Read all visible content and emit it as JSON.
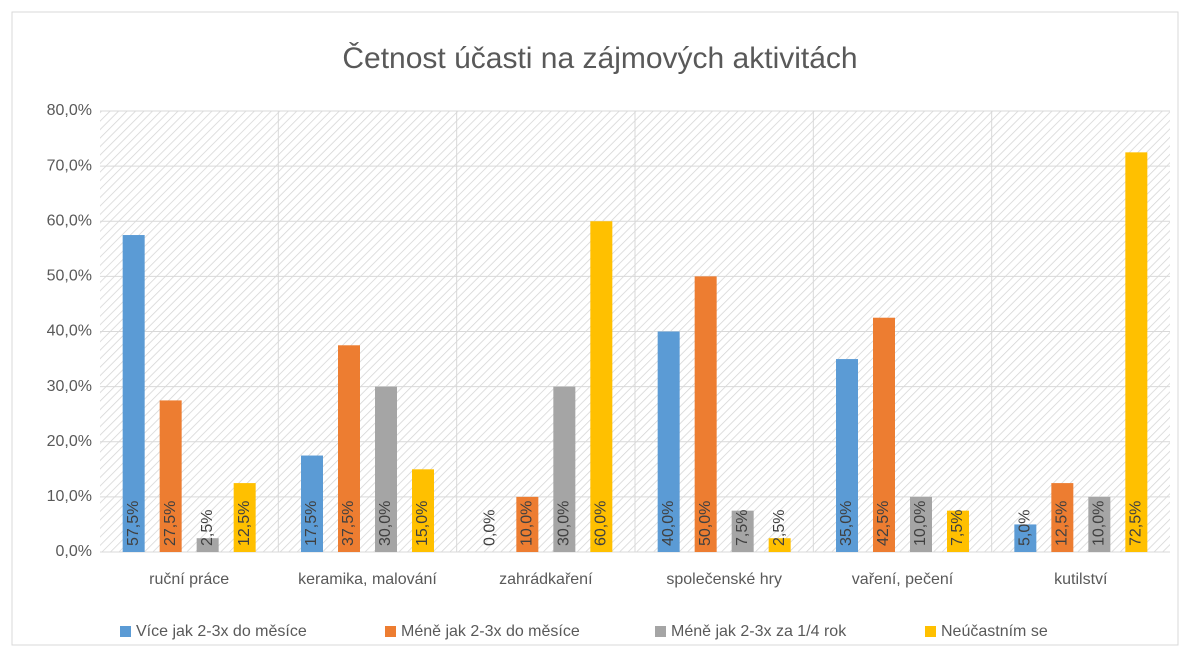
{
  "chart_data": {
    "type": "bar",
    "title": "Četnost  účasti na zájmových aktivitách",
    "categories": [
      "ruční práce",
      "keramika, malování",
      "zahrádkaření",
      "společenské hry",
      "vaření, pečení",
      "kutilství"
    ],
    "series": [
      {
        "name": "Více jak 2-3x do měsíce",
        "color": "#5b9bd5",
        "values": [
          57.5,
          17.5,
          0,
          40,
          35,
          5
        ],
        "value_labels": [
          "57,5%",
          "17,5%",
          "0,0%",
          "40,0%",
          "35,0%",
          "5,0%"
        ]
      },
      {
        "name": "Méně jak 2-3x do měsíce",
        "color": "#ed7d31",
        "values": [
          27.5,
          37.5,
          10,
          50,
          42.5,
          12.5
        ],
        "value_labels": [
          "27,5%",
          "37,5%",
          "10,0%",
          "50,0%",
          "42,5%",
          "12,5%"
        ]
      },
      {
        "name": "Méně jak 2-3x za 1/4 rok",
        "color": "#a5a5a5",
        "values": [
          2.5,
          30,
          30,
          7.5,
          10,
          10
        ],
        "value_labels": [
          "2,5%",
          "30,0%",
          "30,0%",
          "7,5%",
          "10,0%",
          "10,0%"
        ]
      },
      {
        "name": "Neúčastním se",
        "color": "#ffc000",
        "values": [
          12.5,
          15,
          60,
          2.5,
          7.5,
          72.5
        ],
        "value_labels": [
          "12,5%",
          "15,0%",
          "60,0%",
          "2,5%",
          "7,5%",
          "72,5%"
        ]
      }
    ],
    "ylim": [
      0,
      80
    ],
    "yticks": [
      {
        "value": 0,
        "label": "0,0%"
      },
      {
        "value": 10,
        "label": "10,0%"
      },
      {
        "value": 20,
        "label": "20,0%"
      },
      {
        "value": 30,
        "label": "30,0%"
      },
      {
        "value": 40,
        "label": "40,0%"
      },
      {
        "value": 50,
        "label": "50,0%"
      },
      {
        "value": 60,
        "label": "60,0%"
      },
      {
        "value": 70,
        "label": "70,0%"
      },
      {
        "value": 80,
        "label": "80,0%"
      }
    ],
    "grid": true,
    "legend": "bottom"
  }
}
